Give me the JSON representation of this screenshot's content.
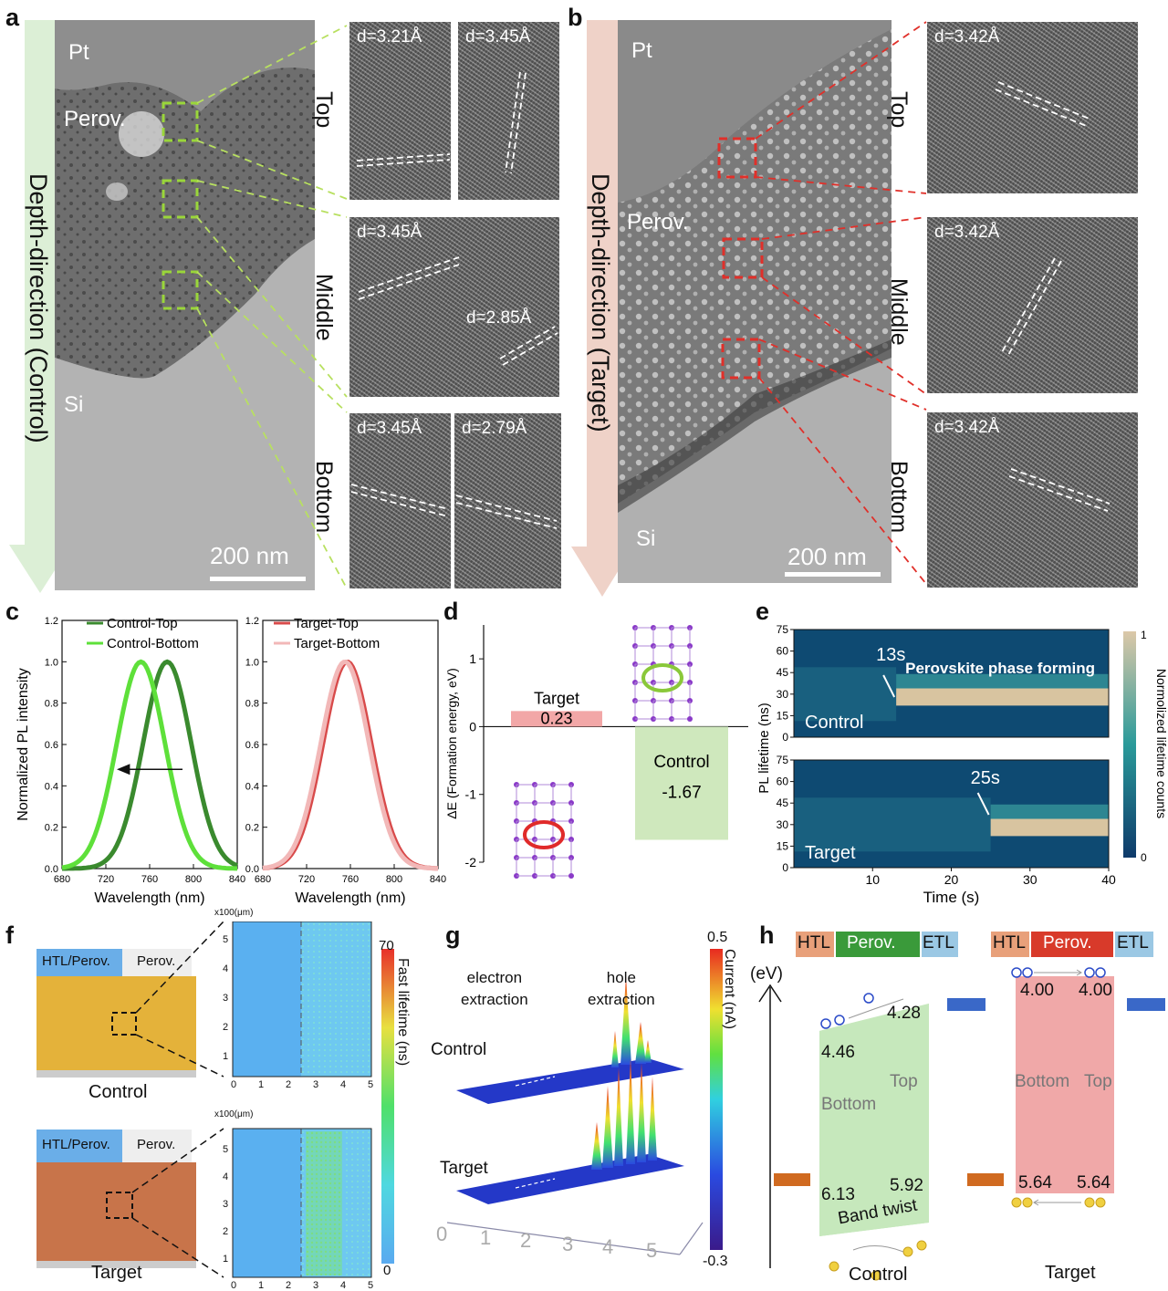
{
  "panel_letters": {
    "a": "a",
    "b": "b",
    "c": "c",
    "d": "d",
    "e": "e",
    "f": "f",
    "g": "g",
    "h": "h"
  },
  "panel_a": {
    "arrow_label": "Depth-direction (Control)",
    "pt": "Pt",
    "perov": "Perov.",
    "si": "Si",
    "scale": "200 nm",
    "regions": {
      "top": "Top",
      "middle": "Middle",
      "bottom": "Bottom"
    },
    "spacings": {
      "top1": "d=3.21Å",
      "top2": "d=3.45Å",
      "mid1": "d=3.45Å",
      "mid2": "d=2.85Å",
      "bot1": "d=3.45Å",
      "bot2": "d=2.79Å"
    }
  },
  "panel_b": {
    "arrow_label": "Depth-direction (Target)",
    "pt": "Pt",
    "perov": "Perov.",
    "si": "Si",
    "scale": "200 nm",
    "regions": {
      "top": "Top",
      "middle": "Middle",
      "bottom": "Bottom"
    },
    "spacings": {
      "top": "d=3.42Å",
      "mid": "d=3.42Å",
      "bot": "d=3.42Å"
    }
  },
  "chart_data": [
    {
      "type": "line",
      "panel": "c-left",
      "xlabel": "Wavelength (nm)",
      "ylabel": "Normalized PL intensity",
      "xlim": [
        680,
        840
      ],
      "ylim": [
        0,
        1.2
      ],
      "xticks": [
        "680",
        "720",
        "760",
        "800",
        "840"
      ],
      "yticks": [
        "0.0",
        "0.2",
        "0.4",
        "0.6",
        "0.8",
        "1.0",
        "1.2"
      ],
      "series": [
        {
          "name": "Control-Top",
          "color": "#3a8a2e",
          "peak": 776
        },
        {
          "name": "Control-Bottom",
          "color": "#5ee03a",
          "peak": 752
        }
      ]
    },
    {
      "type": "line",
      "panel": "c-right",
      "xlabel": "Wavelength (nm)",
      "xlim": [
        680,
        840
      ],
      "ylim": [
        0,
        1.2
      ],
      "xticks": [
        "680",
        "720",
        "760",
        "800",
        "840"
      ],
      "yticks": [
        "0.0",
        "0.2",
        "0.4",
        "0.6",
        "0.8",
        "1.0",
        "1.2"
      ],
      "series": [
        {
          "name": "Target-Top",
          "color": "#d84a4a",
          "peak": 757
        },
        {
          "name": "Target-Bottom",
          "color": "#f2b8b8",
          "peak": 755
        }
      ]
    },
    {
      "type": "bar",
      "panel": "d",
      "ylabel": "ΔE (Formation energy, eV)",
      "ylim": [
        -2,
        1.5
      ],
      "yticks": [
        "-2",
        "-1",
        "0",
        "1"
      ],
      "categories": [
        "Target",
        "Control"
      ],
      "values": [
        0.23,
        -1.67
      ],
      "value_labels": [
        "0.23",
        "-1.67"
      ],
      "colors": [
        "#f2a7a7",
        "#cfe8bd"
      ]
    },
    {
      "type": "heatmap",
      "panel": "e",
      "xlabel": "Time (s)",
      "ylabel": "PL lifetime (ns)",
      "xlim": [
        0,
        40
      ],
      "ylim": [
        0,
        75
      ],
      "xticks": [
        "10",
        "20",
        "30",
        "40"
      ],
      "yticks": [
        "0",
        "15",
        "30",
        "45",
        "60",
        "75"
      ],
      "colorbar_label": "Normolized lifetime counts",
      "colorbar_ticks": [
        "1",
        "0"
      ],
      "subplots": [
        {
          "name": "Control",
          "onset_label": "13s",
          "onset": 13,
          "annotation": "Perovskite phase forming"
        },
        {
          "name": "Target",
          "onset_label": "25s",
          "onset": 25
        }
      ]
    }
  ],
  "panel_f": {
    "htl": "HTL/Perov.",
    "perov": "Perov.",
    "control": "Control",
    "target": "Target",
    "unit": "x100(μm)",
    "xticks": [
      "0",
      "1",
      "2",
      "3",
      "4",
      "5"
    ],
    "yticks": [
      "1",
      "2",
      "3",
      "4",
      "5"
    ],
    "colorbar_label": "Fast lifetime (ns)",
    "cb_max": "70",
    "cb_min": "0"
  },
  "panel_g": {
    "electron": "electron\nextraction",
    "hole": "hole\nextraction",
    "control": "Control",
    "target": "Target",
    "colorbar_label": "Current (nA)",
    "cb_max": "0.5",
    "cb_min": "-0.3",
    "axis": [
      "0",
      "1",
      "2",
      "3",
      "4",
      "5"
    ]
  },
  "panel_h": {
    "htl": "HTL",
    "perov": "Perov.",
    "etl": "ETL",
    "ev": "(eV)",
    "control": {
      "label": "Control",
      "vb_left": "4.46",
      "vb_right": "4.28",
      "cb_left": "6.13",
      "cb_right": "5.92",
      "bottom": "Bottom",
      "top": "Top",
      "twist": "Band twist"
    },
    "target": {
      "label": "Target",
      "vb_left": "4.00",
      "vb_right": "4.00",
      "cb_left": "5.64",
      "cb_right": "5.64",
      "bottom": "Bottom",
      "top": "Top"
    },
    "colors": {
      "htl": "#e8a07a",
      "perov_control": "#3a9a3a",
      "perov_target": "#d83a2a",
      "etl": "#9bc8e4"
    }
  }
}
